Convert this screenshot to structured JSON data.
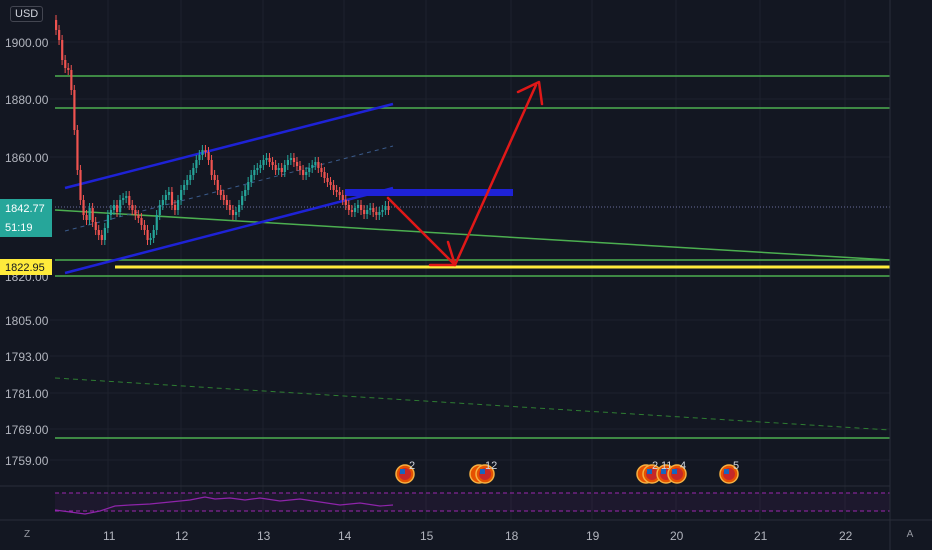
{
  "currency": "USD",
  "price_axis": {
    "ticks": [
      "1900.00",
      "1880.00",
      "1860.00",
      "1805.00",
      "1793.00",
      "1781.00",
      "1769.00",
      "1759.00"
    ],
    "partial_tick": "1820.00",
    "current_price": "1842.77",
    "countdown": "51:19",
    "level_label": "1822.95"
  },
  "time_axis": {
    "ticks": [
      "11",
      "12",
      "13",
      "14",
      "15",
      "18",
      "19",
      "20",
      "21",
      "22"
    ]
  },
  "events": [
    {
      "count": "2"
    },
    {
      "count": "12"
    },
    {
      "count": "2"
    },
    {
      "count": "11"
    },
    {
      "count": "4"
    },
    {
      "count": "5"
    }
  ],
  "bottom_bar": {
    "left_button": "Z",
    "right_button": "A"
  },
  "colors": {
    "background": "#131722",
    "up_candle": "#26a69a",
    "down_candle": "#ef5350",
    "support_line": "#4caf50",
    "channel": "#1e22d6",
    "arrow": "#e01818",
    "level": "#ffeb3b",
    "current_price_badge": "#26a69a",
    "oscillator": "#9c27b0"
  }
}
